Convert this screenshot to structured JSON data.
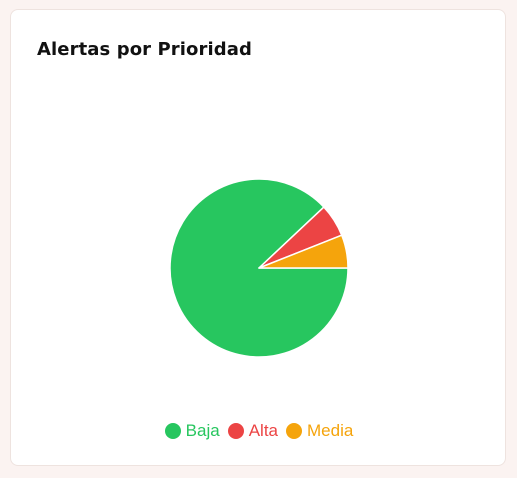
{
  "card": {
    "title": "Alertas por Prioridad"
  },
  "chart_data": {
    "type": "pie",
    "categories": [
      "Baja",
      "Alta",
      "Media"
    ],
    "values": [
      88,
      6,
      6
    ],
    "colors": [
      "#27c65f",
      "#ec4444",
      "#f5a40c"
    ],
    "legend_position": "bottom",
    "start_angle": "east",
    "direction": "clockwise"
  }
}
